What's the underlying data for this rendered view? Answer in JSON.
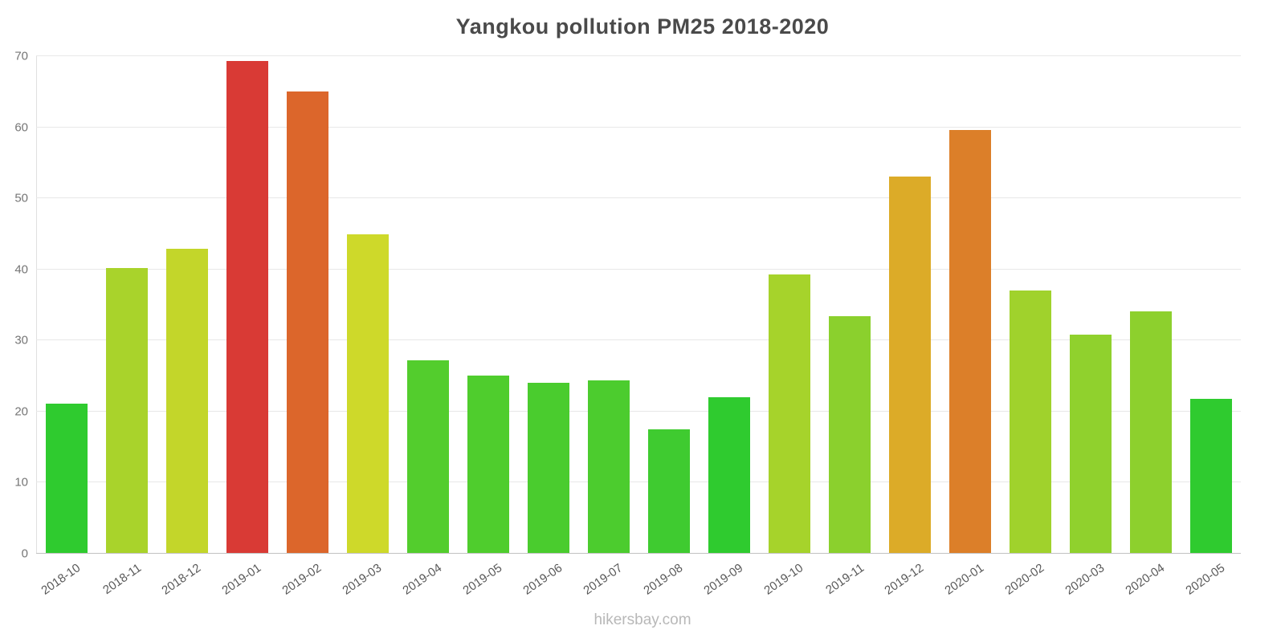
{
  "chart_data": {
    "type": "bar",
    "title": "Yangkou pollution PM25 2018-2020",
    "xlabel": "",
    "ylabel": "",
    "ylim": [
      0,
      70
    ],
    "yticks": [
      0,
      10,
      20,
      30,
      40,
      50,
      60,
      70
    ],
    "grid": true,
    "legend": false,
    "categories": [
      "2018-10",
      "2018-11",
      "2018-12",
      "2019-01",
      "2019-02",
      "2019-03",
      "2019-04",
      "2019-05",
      "2019-06",
      "2019-07",
      "2019-08",
      "2019-09",
      "2019-10",
      "2019-11",
      "2019-12",
      "2020-01",
      "2020-02",
      "2020-03",
      "2020-04",
      "2020-05"
    ],
    "values": [
      21.0,
      40.1,
      42.8,
      69.2,
      64.9,
      44.8,
      27.1,
      25.0,
      23.9,
      24.3,
      17.4,
      21.9,
      39.2,
      33.3,
      52.9,
      59.5,
      36.9,
      30.7,
      34.0,
      21.7
    ],
    "colors": [
      "#2fcb2f",
      "#a9d32b",
      "#c3d62a",
      "#d93a35",
      "#dc662b",
      "#ced92a",
      "#53cd2d",
      "#4fcd2d",
      "#4acc2e",
      "#4ccc2e",
      "#3fcb30",
      "#2fcb2f",
      "#a6d32b",
      "#8bd02d",
      "#dcab28",
      "#dc7f29",
      "#a0d22c",
      "#90d12d",
      "#8dd02d",
      "#2fcb2f"
    ]
  },
  "axes": {
    "gridline_color": "#e8e8e8",
    "baseline_color": "#c2c2c2",
    "y_label_color": "#757575",
    "x_label_color": "#595959",
    "title_color": "#4a4a4a"
  },
  "footer": {
    "watermark": "hikersbay.com"
  }
}
